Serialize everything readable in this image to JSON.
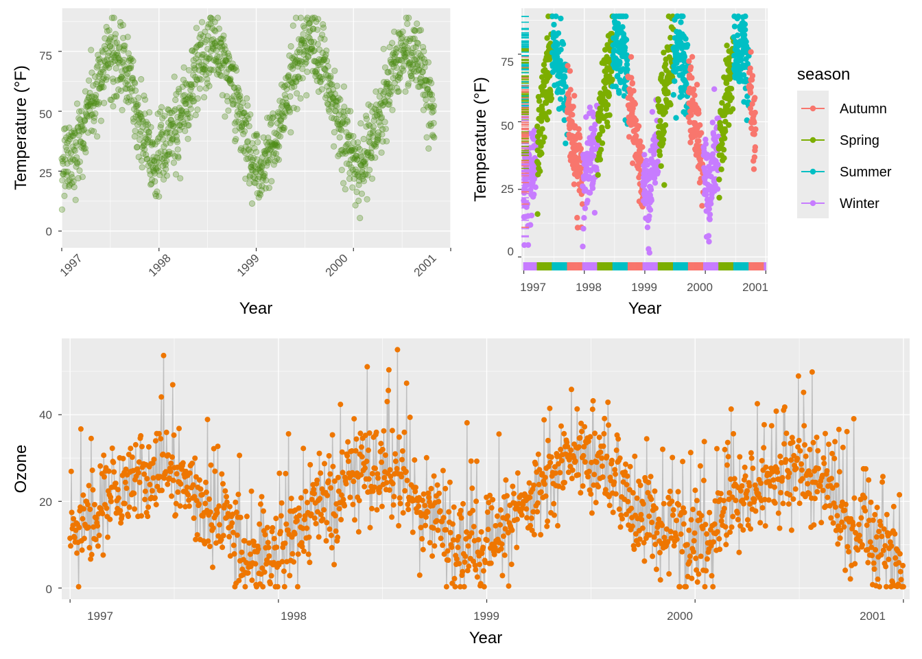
{
  "chart_data": [
    {
      "id": "temp-scatter",
      "type": "scatter",
      "xlabel": "Year",
      "ylabel": "Temperature (°F)",
      "xlim": [
        1997,
        2001
      ],
      "ylim": [
        -7,
        93
      ],
      "x_ticks": [
        "1997",
        "1998",
        "1999",
        "2000",
        "2001"
      ],
      "y_ticks": [
        0,
        25,
        50,
        75
      ],
      "x_tick_rotation_deg": 45,
      "grid": true,
      "color": "#4C8C14",
      "opacity": 0.3,
      "series": [
        {
          "monthly_mean_temperature": [
            {
              "x": 1997.05,
              "y": 27
            },
            {
              "x": 1997.13,
              "y": 33
            },
            {
              "x": 1997.21,
              "y": 38
            },
            {
              "x": 1997.3,
              "y": 52
            },
            {
              "x": 1997.38,
              "y": 63
            },
            {
              "x": 1997.46,
              "y": 74
            },
            {
              "x": 1997.55,
              "y": 72
            },
            {
              "x": 1997.63,
              "y": 68
            },
            {
              "x": 1997.71,
              "y": 62
            },
            {
              "x": 1997.8,
              "y": 45
            },
            {
              "x": 1997.88,
              "y": 37
            },
            {
              "x": 1997.96,
              "y": 28
            },
            {
              "x": 1998.05,
              "y": 33
            },
            {
              "x": 1998.13,
              "y": 38
            },
            {
              "x": 1998.21,
              "y": 44
            },
            {
              "x": 1998.3,
              "y": 55
            },
            {
              "x": 1998.38,
              "y": 67
            },
            {
              "x": 1998.46,
              "y": 73
            },
            {
              "x": 1998.55,
              "y": 76
            },
            {
              "x": 1998.63,
              "y": 74
            },
            {
              "x": 1998.71,
              "y": 66
            },
            {
              "x": 1998.8,
              "y": 52
            },
            {
              "x": 1998.88,
              "y": 42
            },
            {
              "x": 1998.96,
              "y": 30
            },
            {
              "x": 1999.05,
              "y": 22
            },
            {
              "x": 1999.13,
              "y": 33
            },
            {
              "x": 1999.21,
              "y": 40
            },
            {
              "x": 1999.3,
              "y": 52
            },
            {
              "x": 1999.38,
              "y": 65
            },
            {
              "x": 1999.46,
              "y": 75
            },
            {
              "x": 1999.55,
              "y": 80
            },
            {
              "x": 1999.63,
              "y": 72
            },
            {
              "x": 1999.71,
              "y": 65
            },
            {
              "x": 1999.8,
              "y": 52
            },
            {
              "x": 1999.88,
              "y": 43
            },
            {
              "x": 1999.96,
              "y": 34
            },
            {
              "x": 2000.05,
              "y": 23
            },
            {
              "x": 2000.13,
              "y": 32
            },
            {
              "x": 2000.21,
              "y": 42
            },
            {
              "x": 2000.3,
              "y": 52
            },
            {
              "x": 2000.38,
              "y": 65
            },
            {
              "x": 2000.46,
              "y": 71
            },
            {
              "x": 2000.55,
              "y": 75
            },
            {
              "x": 2000.63,
              "y": 74
            },
            {
              "x": 2000.71,
              "y": 66
            },
            {
              "x": 2000.8,
              "y": 50
            },
            {
              "x": 2000.88,
              "y": 35
            },
            {
              "x": 2000.96,
              "y": 15
            }
          ],
          "approximate_range": [
            -3,
            89
          ]
        }
      ]
    },
    {
      "id": "temp-by-season",
      "type": "scatter",
      "xlabel": "Year",
      "ylabel": "Temperature (°F)",
      "xlim": [
        1996.96,
        2001.03
      ],
      "ylim": [
        -5,
        92
      ],
      "x_ticks": [
        "1997",
        "1998",
        "1999",
        "2000",
        "2001"
      ],
      "y_ticks": [
        0,
        25,
        50,
        75
      ],
      "grid": true,
      "rug": true,
      "legend": {
        "title": "season",
        "placement": "right",
        "entries": [
          {
            "name": "Autumn",
            "color": "#F8766D"
          },
          {
            "name": "Spring",
            "color": "#7CAE00"
          },
          {
            "name": "Summer",
            "color": "#00BFC4"
          },
          {
            "name": "Winter",
            "color": "#C77CFF"
          }
        ]
      },
      "series": [
        {
          "name": "Winter",
          "color": "#C77CFF",
          "periods": [
            [
              1997.0,
              1997.22
            ],
            [
              1997.97,
              1998.22
            ],
            [
              1998.97,
              1999.22
            ],
            [
              1999.97,
              2000.22
            ],
            [
              2000.97,
              2001.0
            ]
          ]
        },
        {
          "name": "Spring",
          "color": "#7CAE00",
          "periods": [
            [
              1997.22,
              1997.47
            ],
            [
              1998.22,
              1998.47
            ],
            [
              1999.22,
              1999.47
            ],
            [
              2000.22,
              2000.47
            ]
          ]
        },
        {
          "name": "Summer",
          "color": "#00BFC4",
          "periods": [
            [
              1997.47,
              1997.72
            ],
            [
              1998.47,
              1998.72
            ],
            [
              1999.47,
              1999.72
            ],
            [
              2000.47,
              2000.72
            ]
          ]
        },
        {
          "name": "Autumn",
          "color": "#F8766D",
          "periods": [
            [
              1997.72,
              1997.97
            ],
            [
              1998.72,
              1998.97
            ],
            [
              1999.72,
              1999.97
            ],
            [
              2000.72,
              2000.97
            ]
          ]
        }
      ]
    },
    {
      "id": "ozone-lollipop",
      "type": "scatter",
      "style": "lollipop",
      "xlabel": "Year",
      "ylabel": "Ozone",
      "xlim": [
        1996.96,
        2001.03
      ],
      "ylim": [
        -2.6,
        57.6
      ],
      "x_ticks": [
        "1997",
        "1998",
        "1999",
        "2000",
        "2001"
      ],
      "y_ticks": [
        0,
        20,
        40
      ],
      "grid": true,
      "point_color": "#EE7600",
      "stem_color": "#BEBEBE",
      "series": [
        {
          "monthly_mean_ozone": [
            {
              "x": 1997.05,
              "y": 12
            },
            {
              "x": 1997.13,
              "y": 17
            },
            {
              "x": 1997.21,
              "y": 22
            },
            {
              "x": 1997.3,
              "y": 24
            },
            {
              "x": 1997.38,
              "y": 25
            },
            {
              "x": 1997.46,
              "y": 28
            },
            {
              "x": 1997.55,
              "y": 27
            },
            {
              "x": 1997.63,
              "y": 20
            },
            {
              "x": 1997.71,
              "y": 16
            },
            {
              "x": 1997.8,
              "y": 11
            },
            {
              "x": 1997.88,
              "y": 8
            },
            {
              "x": 1997.96,
              "y": 6
            },
            {
              "x": 1998.05,
              "y": 10
            },
            {
              "x": 1998.13,
              "y": 15
            },
            {
              "x": 1998.21,
              "y": 20
            },
            {
              "x": 1998.3,
              "y": 22
            },
            {
              "x": 1998.38,
              "y": 26
            },
            {
              "x": 1998.46,
              "y": 29
            },
            {
              "x": 1998.55,
              "y": 28
            },
            {
              "x": 1998.63,
              "y": 25
            },
            {
              "x": 1998.71,
              "y": 18
            },
            {
              "x": 1998.8,
              "y": 11
            },
            {
              "x": 1998.88,
              "y": 8
            },
            {
              "x": 1998.96,
              "y": 8
            },
            {
              "x": 1999.05,
              "y": 12
            },
            {
              "x": 1999.13,
              "y": 16
            },
            {
              "x": 1999.21,
              "y": 20
            },
            {
              "x": 1999.3,
              "y": 26
            },
            {
              "x": 1999.38,
              "y": 29
            },
            {
              "x": 1999.46,
              "y": 30
            },
            {
              "x": 1999.55,
              "y": 28
            },
            {
              "x": 1999.63,
              "y": 24
            },
            {
              "x": 1999.71,
              "y": 18
            },
            {
              "x": 1999.8,
              "y": 14
            },
            {
              "x": 1999.88,
              "y": 12
            },
            {
              "x": 1999.96,
              "y": 10
            },
            {
              "x": 2000.05,
              "y": 12
            },
            {
              "x": 2000.13,
              "y": 17
            },
            {
              "x": 2000.21,
              "y": 20
            },
            {
              "x": 2000.3,
              "y": 23
            },
            {
              "x": 2000.38,
              "y": 25
            },
            {
              "x": 2000.46,
              "y": 27
            },
            {
              "x": 2000.55,
              "y": 26
            },
            {
              "x": 2000.63,
              "y": 23
            },
            {
              "x": 2000.71,
              "y": 17
            },
            {
              "x": 2000.8,
              "y": 12
            },
            {
              "x": 2000.88,
              "y": 8
            },
            {
              "x": 2000.96,
              "y": 7
            }
          ],
          "approximate_range": [
            0.3,
            55
          ]
        }
      ]
    }
  ]
}
